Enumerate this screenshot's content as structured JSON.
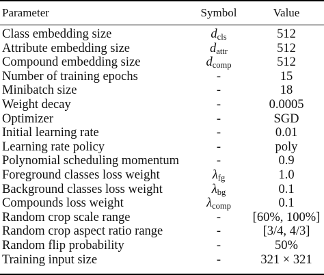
{
  "table": {
    "headers": {
      "parameter": "Parameter",
      "symbol": "Symbol",
      "value": "Value"
    },
    "rows": [
      {
        "parameter": "Class embedding size",
        "symbol_main": "d",
        "symbol_sub": "cls",
        "value": "512"
      },
      {
        "parameter": "Attribute embedding size",
        "symbol_main": "d",
        "symbol_sub": "attr",
        "value": "512"
      },
      {
        "parameter": "Compound embedding size",
        "symbol_main": "d",
        "symbol_sub": "comp",
        "value": "512"
      },
      {
        "parameter": "Number of training epochs",
        "symbol_main": "-",
        "symbol_sub": "",
        "value": "15"
      },
      {
        "parameter": "Minibatch size",
        "symbol_main": "-",
        "symbol_sub": "",
        "value": "18"
      },
      {
        "parameter": "Weight decay",
        "symbol_main": "-",
        "symbol_sub": "",
        "value": "0.0005"
      },
      {
        "parameter": "Optimizer",
        "symbol_main": "-",
        "symbol_sub": "",
        "value": "SGD"
      },
      {
        "parameter": "Initial learning rate",
        "symbol_main": "-",
        "symbol_sub": "",
        "value": "0.01"
      },
      {
        "parameter": "Learning rate policy",
        "symbol_main": "-",
        "symbol_sub": "",
        "value": "poly"
      },
      {
        "parameter": "Polynomial scheduling momentum",
        "symbol_main": "-",
        "symbol_sub": "",
        "value": "0.9"
      },
      {
        "parameter": "Foreground classes loss weight",
        "symbol_main": "λ",
        "symbol_sub": "fg",
        "value": "1.0"
      },
      {
        "parameter": "Background classes loss weight",
        "symbol_main": "λ",
        "symbol_sub": "bg",
        "value": "0.1"
      },
      {
        "parameter": "Compounds loss weight",
        "symbol_main": "λ",
        "symbol_sub": "comp",
        "value": "0.1"
      },
      {
        "parameter": "Random crop scale range",
        "symbol_main": "-",
        "symbol_sub": "",
        "value": "[60%, 100%]"
      },
      {
        "parameter": "Random crop aspect ratio range",
        "symbol_main": "-",
        "symbol_sub": "",
        "value": "[3/4, 4/3]"
      },
      {
        "parameter": "Random flip probability",
        "symbol_main": "-",
        "symbol_sub": "",
        "value": "50%"
      },
      {
        "parameter": "Training input size",
        "symbol_main": "-",
        "symbol_sub": "",
        "value": "321 × 321"
      }
    ]
  }
}
